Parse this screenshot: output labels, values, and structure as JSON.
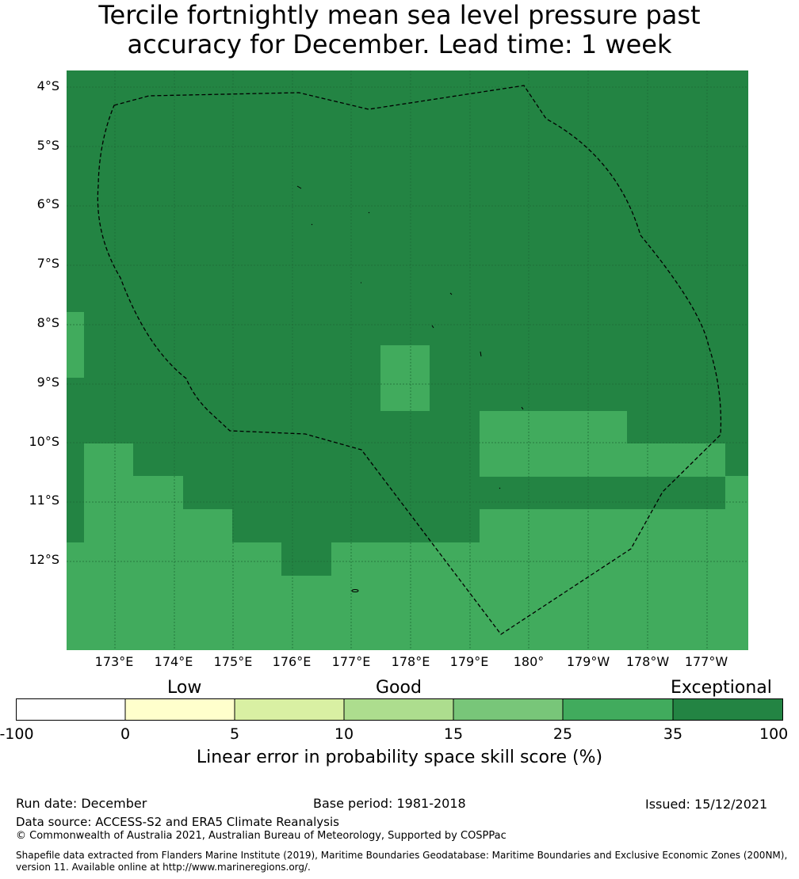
{
  "title": {
    "line1": "Tercile fortnightly mean sea level pressure past",
    "line2": "accuracy for December. Lead time: 1 week"
  },
  "map": {
    "lat_labels": [
      "4°S",
      "5°S",
      "6°S",
      "7°S",
      "8°S",
      "9°S",
      "10°S",
      "11°S",
      "12°S"
    ],
    "lon_labels": [
      "173°E",
      "174°E",
      "175°E",
      "176°E",
      "177°E",
      "178°E",
      "179°E",
      "180°",
      "179°W",
      "178°W",
      "177°W"
    ],
    "colors": {
      "exceptional": "#238443",
      "very_good": "#41ab5d",
      "boundary": "#000000"
    }
  },
  "colorbar": {
    "categories": {
      "low": "Low",
      "good": "Good",
      "exceptional": "Exceptional"
    },
    "ticks": [
      "-100",
      "0",
      "5",
      "10",
      "15",
      "25",
      "35",
      "100"
    ],
    "colors": [
      "#ffffff",
      "#ffffcc",
      "#d9f0a3",
      "#addd8e",
      "#78c679",
      "#41ab5d",
      "#238443"
    ],
    "label": "Linear error in probability space skill score (%)"
  },
  "footer": {
    "run_date": "Run date: December",
    "base_period": "Base period: 1981-2018",
    "issued": "Issued: 15/12/2021",
    "data_source": "Data source: ACCESS-S2 and ERA5 Climate Reanalysis",
    "copyright": "© Commonwealth of Australia 2021, Australian Bureau of Meteorology, Supported by COSPPac",
    "shapefile_line1": "Shapefile data extracted from Flanders Marine Institute (2019), Maritime Boundaries Geodatabase: Maritime Boundaries and Exclusive Economic Zones (200NM),",
    "shapefile_line2": "version 11. Available online at http://www.marineregions.org/."
  }
}
